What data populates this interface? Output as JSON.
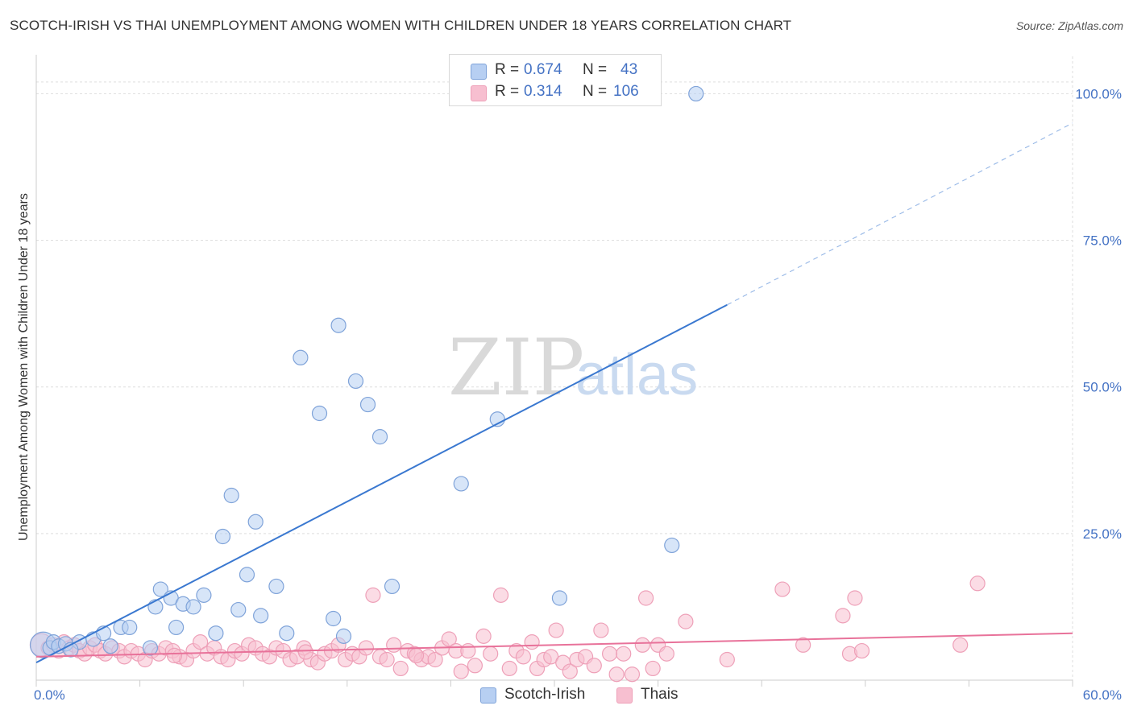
{
  "header": {
    "title": "SCOTCH-IRISH VS THAI UNEMPLOYMENT AMONG WOMEN WITH CHILDREN UNDER 18 YEARS CORRELATION CHART",
    "source": "Source: ZipAtlas.com"
  },
  "watermark": {
    "zip": "ZIP",
    "atlas": "atlas"
  },
  "legend_top": {
    "rows": [
      {
        "r_label": "R =",
        "r_value": "0.674",
        "n_label": "N =",
        "n_value": "43"
      },
      {
        "r_label": "R =",
        "r_value": "0.314",
        "n_label": "N =",
        "n_value": "106"
      }
    ]
  },
  "legend_bottom": {
    "items": [
      "Scotch-Irish",
      "Thais"
    ]
  },
  "colors": {
    "blue_fill": "#b7cff2",
    "blue_stroke": "#7fa3d9",
    "blue_line": "#3a78d0",
    "pink_fill": "#f7bfd0",
    "pink_stroke": "#eea0b8",
    "pink_line": "#e8729a",
    "tick_text": "#4472c4",
    "grid": "#dddddd"
  },
  "chart_data": {
    "type": "scatter",
    "title": "SCOTCH-IRISH VS THAI UNEMPLOYMENT AMONG WOMEN WITH CHILDREN UNDER 18 YEARS CORRELATION CHART",
    "xlabel": "",
    "ylabel": "Unemployment Among Women with Children Under 18 years",
    "xlim": [
      0,
      60
    ],
    "ylim": [
      0,
      105
    ],
    "x_tick_labels": [
      "0.0%",
      "60.0%"
    ],
    "y_ticks": [
      25,
      50,
      75,
      100
    ],
    "y_tick_labels": [
      "25.0%",
      "50.0%",
      "75.0%",
      "100.0%"
    ],
    "grid": true,
    "legend_placement": "top-center and bottom",
    "series": [
      {
        "name": "Scotch-Irish",
        "r": 0.674,
        "n": 43,
        "points": [
          [
            0.4,
            6.0
          ],
          [
            0.8,
            5.5
          ],
          [
            1.0,
            6.5
          ],
          [
            1.3,
            5.8
          ],
          [
            1.7,
            6.2
          ],
          [
            2.5,
            6.5
          ],
          [
            3.3,
            7.0
          ],
          [
            3.9,
            8.0
          ],
          [
            4.9,
            9.0
          ],
          [
            5.4,
            9.0
          ],
          [
            4.3,
            5.8
          ],
          [
            6.6,
            5.5
          ],
          [
            6.9,
            12.5
          ],
          [
            7.2,
            15.5
          ],
          [
            7.8,
            14.0
          ],
          [
            8.1,
            9.0
          ],
          [
            8.5,
            13.0
          ],
          [
            9.1,
            12.5
          ],
          [
            9.7,
            14.5
          ],
          [
            10.4,
            8.0
          ],
          [
            10.8,
            24.5
          ],
          [
            11.3,
            31.5
          ],
          [
            11.7,
            12.0
          ],
          [
            12.2,
            18.0
          ],
          [
            12.7,
            27.0
          ],
          [
            13.0,
            11.0
          ],
          [
            13.9,
            16.0
          ],
          [
            14.5,
            8.0
          ],
          [
            15.3,
            55.0
          ],
          [
            16.4,
            45.5
          ],
          [
            17.2,
            10.5
          ],
          [
            17.5,
            60.5
          ],
          [
            17.8,
            7.5
          ],
          [
            18.5,
            51.0
          ],
          [
            19.2,
            47.0
          ],
          [
            19.9,
            41.5
          ],
          [
            20.6,
            16.0
          ],
          [
            24.6,
            33.5
          ],
          [
            26.7,
            44.5
          ],
          [
            30.3,
            14.0
          ],
          [
            36.8,
            23.0
          ],
          [
            38.2,
            100.0
          ],
          [
            2.0,
            5.2
          ]
        ],
        "trend": {
          "x": [
            0,
            40
          ],
          "y": [
            3.0,
            64.0
          ],
          "extended_to": [
            60,
            95.0
          ]
        }
      },
      {
        "name": "Thais",
        "r": 0.314,
        "n": 106,
        "points": [
          [
            0.3,
            6.0
          ],
          [
            0.7,
            5.5
          ],
          [
            1.0,
            6.0
          ],
          [
            1.3,
            5.0
          ],
          [
            1.6,
            6.5
          ],
          [
            1.9,
            5.5
          ],
          [
            2.2,
            6.0
          ],
          [
            2.5,
            5.0
          ],
          [
            2.8,
            4.5
          ],
          [
            3.1,
            5.5
          ],
          [
            3.4,
            6.0
          ],
          [
            3.7,
            5.0
          ],
          [
            4.0,
            4.5
          ],
          [
            4.4,
            5.5
          ],
          [
            4.8,
            5.0
          ],
          [
            5.1,
            4.0
          ],
          [
            5.5,
            5.0
          ],
          [
            5.9,
            4.5
          ],
          [
            6.3,
            3.5
          ],
          [
            6.7,
            5.0
          ],
          [
            7.1,
            4.5
          ],
          [
            7.5,
            5.5
          ],
          [
            7.9,
            5.0
          ],
          [
            8.3,
            4.0
          ],
          [
            8.7,
            3.5
          ],
          [
            9.1,
            5.0
          ],
          [
            9.5,
            6.5
          ],
          [
            9.9,
            4.5
          ],
          [
            10.3,
            5.5
          ],
          [
            10.7,
            4.0
          ],
          [
            11.1,
            3.5
          ],
          [
            11.5,
            5.0
          ],
          [
            11.9,
            4.5
          ],
          [
            12.3,
            6.0
          ],
          [
            12.7,
            5.5
          ],
          [
            13.1,
            4.5
          ],
          [
            13.5,
            4.0
          ],
          [
            13.9,
            5.5
          ],
          [
            14.3,
            5.0
          ],
          [
            14.7,
            3.5
          ],
          [
            15.1,
            4.0
          ],
          [
            15.5,
            5.5
          ],
          [
            15.9,
            3.5
          ],
          [
            16.3,
            3.0
          ],
          [
            16.7,
            4.5
          ],
          [
            17.1,
            5.0
          ],
          [
            17.5,
            6.0
          ],
          [
            17.9,
            3.5
          ],
          [
            18.3,
            4.5
          ],
          [
            18.7,
            4.0
          ],
          [
            19.1,
            5.5
          ],
          [
            19.5,
            14.5
          ],
          [
            19.9,
            4.0
          ],
          [
            20.3,
            3.5
          ],
          [
            20.7,
            6.0
          ],
          [
            21.1,
            2.0
          ],
          [
            21.5,
            5.0
          ],
          [
            21.9,
            4.5
          ],
          [
            22.3,
            3.5
          ],
          [
            22.7,
            4.0
          ],
          [
            23.1,
            3.5
          ],
          [
            23.5,
            5.5
          ],
          [
            23.9,
            7.0
          ],
          [
            24.3,
            5.0
          ],
          [
            24.6,
            1.5
          ],
          [
            25.0,
            5.0
          ],
          [
            25.4,
            2.5
          ],
          [
            25.9,
            7.5
          ],
          [
            26.3,
            4.5
          ],
          [
            26.9,
            14.5
          ],
          [
            27.4,
            2.0
          ],
          [
            27.8,
            5.0
          ],
          [
            28.2,
            4.0
          ],
          [
            28.7,
            6.5
          ],
          [
            29.0,
            2.0
          ],
          [
            29.4,
            3.5
          ],
          [
            29.8,
            4.0
          ],
          [
            30.1,
            8.5
          ],
          [
            30.5,
            3.0
          ],
          [
            30.9,
            1.5
          ],
          [
            31.3,
            3.5
          ],
          [
            31.8,
            4.0
          ],
          [
            32.3,
            2.5
          ],
          [
            32.7,
            8.5
          ],
          [
            33.2,
            4.5
          ],
          [
            33.6,
            1.0
          ],
          [
            34.0,
            4.5
          ],
          [
            34.5,
            1.0
          ],
          [
            35.1,
            6.0
          ],
          [
            35.3,
            14.0
          ],
          [
            35.7,
            2.0
          ],
          [
            36.0,
            6.0
          ],
          [
            36.5,
            4.5
          ],
          [
            37.6,
            10.0
          ],
          [
            40.0,
            3.5
          ],
          [
            43.2,
            15.5
          ],
          [
            44.4,
            6.0
          ],
          [
            46.7,
            11.0
          ],
          [
            47.1,
            4.5
          ],
          [
            47.4,
            14.0
          ],
          [
            47.8,
            5.0
          ],
          [
            53.5,
            6.0
          ],
          [
            54.5,
            16.5
          ],
          [
            8.0,
            4.2
          ],
          [
            15.6,
            4.8
          ],
          [
            22.0,
            4.2
          ]
        ],
        "trend": {
          "x": [
            0,
            60
          ],
          "y": [
            4.0,
            8.0
          ]
        }
      }
    ]
  }
}
